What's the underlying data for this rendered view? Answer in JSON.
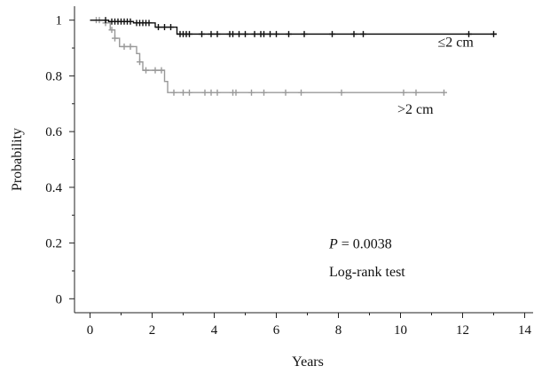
{
  "chart_data": {
    "type": "line",
    "subtype": "kaplan-meier",
    "title": "",
    "xlabel": "Years",
    "ylabel": "Probability",
    "xlim": [
      -0.5,
      14.3
    ],
    "ylim": [
      -0.05,
      1.05
    ],
    "xticks": [
      0,
      2,
      4,
      6,
      8,
      10,
      12,
      14
    ],
    "xtick_labels": [
      "0",
      "2",
      "4",
      "6",
      "8",
      "10",
      "12",
      "14"
    ],
    "yticks": [
      0,
      0.2,
      0.4,
      0.6,
      0.8,
      1
    ],
    "ytick_labels": [
      "0",
      "0.2",
      "0.4",
      "0.6",
      "0.8",
      "1"
    ],
    "grid": false,
    "colors": {
      "le2": "#111111",
      "gt2": "#999999"
    },
    "series": [
      {
        "name": "≤2 cm",
        "color": "#111111",
        "steps": [
          [
            0,
            1.0
          ],
          [
            0.6,
            0.995
          ],
          [
            1.4,
            0.99
          ],
          [
            2.1,
            0.975
          ],
          [
            2.8,
            0.95
          ],
          [
            13.1,
            0.95
          ]
        ],
        "censored_x": [
          0.5,
          0.7,
          0.8,
          0.9,
          1.0,
          1.1,
          1.2,
          1.3,
          1.5,
          1.6,
          1.7,
          1.8,
          1.9,
          2.2,
          2.4,
          2.6,
          2.9,
          3.0,
          3.1,
          3.2,
          3.6,
          3.9,
          4.1,
          4.5,
          4.6,
          4.8,
          5.0,
          5.3,
          5.5,
          5.6,
          5.8,
          6.0,
          6.4,
          6.9,
          7.8,
          8.5,
          8.8,
          12.2,
          13.0
        ]
      },
      {
        "name": ">2 cm",
        "color": "#999999",
        "steps": [
          [
            0,
            1.0
          ],
          [
            0.5,
            0.99
          ],
          [
            0.65,
            0.965
          ],
          [
            0.8,
            0.935
          ],
          [
            0.95,
            0.905
          ],
          [
            1.5,
            0.88
          ],
          [
            1.6,
            0.85
          ],
          [
            1.7,
            0.82
          ],
          [
            2.4,
            0.78
          ],
          [
            2.5,
            0.74
          ],
          [
            11.4,
            0.74
          ]
        ],
        "censored_x": [
          0.2,
          0.3,
          0.5,
          0.7,
          0.8,
          1.1,
          1.3,
          1.6,
          1.8,
          2.1,
          2.3,
          2.7,
          3.0,
          3.2,
          3.7,
          3.9,
          4.1,
          4.6,
          4.7,
          5.2,
          5.6,
          6.3,
          6.8,
          8.1,
          10.1,
          10.5,
          11.4
        ]
      }
    ],
    "annotations": {
      "label_le2": "≤2 cm",
      "label_gt2": ">2 cm",
      "p_prefix": "P",
      "p_value": " = 0.0038",
      "test": "Log-rank test"
    }
  }
}
